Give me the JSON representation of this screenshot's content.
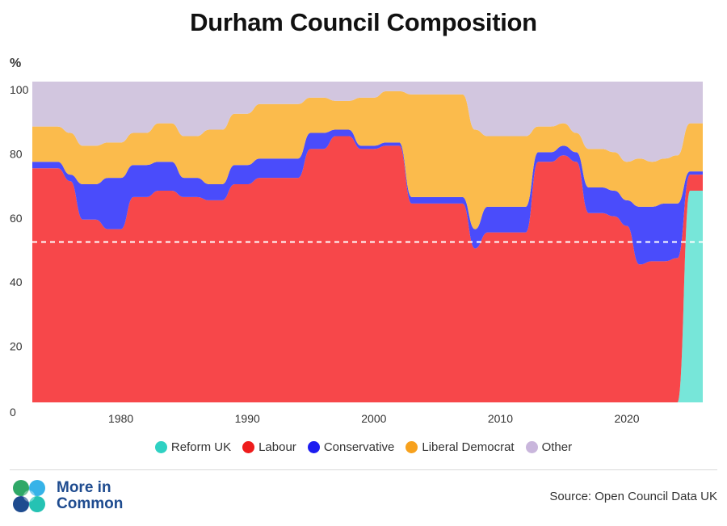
{
  "chart_data": {
    "type": "area",
    "title": "Durham Council Composition",
    "ylabel": "%",
    "xlabel": "",
    "xlim": [
      1973,
      2026
    ],
    "ylim": [
      0,
      100
    ],
    "x_ticks": [
      1980,
      1990,
      2000,
      2010,
      2020
    ],
    "y_ticks": [
      0,
      20,
      40,
      60,
      80,
      100
    ],
    "stacked": true,
    "reference_line": 50,
    "legend_position": "bottom",
    "breakpoints": [
      1973,
      1975,
      1976,
      1977,
      1978,
      1979,
      1980,
      1981,
      1982,
      1983,
      1984,
      1985,
      1986,
      1987,
      1988,
      1989,
      1990,
      1991,
      1992,
      1993,
      1994,
      1995,
      1996,
      1997,
      1998,
      1999,
      2000,
      2001,
      2002,
      2003,
      2004,
      2005,
      2006,
      2007,
      2008,
      2009,
      2010,
      2011,
      2012,
      2013,
      2014,
      2015,
      2016,
      2017,
      2018,
      2019,
      2020,
      2021,
      2022,
      2023,
      2024,
      2025,
      2026
    ],
    "series": [
      {
        "name": "Reform UK",
        "color": "#77e6d9",
        "values": [
          0,
          0,
          0,
          0,
          0,
          0,
          0,
          0,
          0,
          0,
          0,
          0,
          0,
          0,
          0,
          0,
          0,
          0,
          0,
          0,
          0,
          0,
          0,
          0,
          0,
          0,
          0,
          0,
          0,
          0,
          0,
          0,
          0,
          0,
          0,
          0,
          0,
          0,
          0,
          0,
          0,
          0,
          0,
          0,
          0,
          0,
          0,
          0,
          0,
          0,
          0,
          66,
          66
        ]
      },
      {
        "name": "Labour",
        "color": "#f7474a",
        "values": [
          73,
          73,
          69,
          57,
          57,
          54,
          54,
          64,
          64,
          66,
          66,
          64,
          64,
          63,
          63,
          68,
          68,
          70,
          70,
          70,
          70,
          79,
          79,
          83,
          83,
          79,
          79,
          80,
          80,
          62,
          62,
          62,
          62,
          62,
          48,
          53,
          53,
          53,
          53,
          75,
          75,
          77,
          75,
          59,
          59,
          58,
          55,
          43,
          44,
          44,
          45,
          5,
          5
        ]
      },
      {
        "name": "Conservative",
        "color": "#4a4cfb",
        "values": [
          2,
          2,
          2,
          11,
          11,
          16,
          16,
          10,
          10,
          9,
          9,
          6,
          6,
          5,
          5,
          6,
          6,
          6,
          6,
          6,
          6,
          5,
          5,
          2,
          2,
          1,
          1,
          1,
          1,
          2,
          2,
          2,
          2,
          2,
          6,
          8,
          8,
          8,
          8,
          3,
          3,
          3,
          3,
          8,
          8,
          8,
          8,
          18,
          17,
          18,
          17,
          1,
          1
        ]
      },
      {
        "name": "Liberal Democrat",
        "color": "#fbbb4c",
        "values": [
          11,
          11,
          13,
          12,
          12,
          11,
          11,
          10,
          10,
          12,
          12,
          13,
          13,
          17,
          17,
          16,
          16,
          17,
          17,
          17,
          17,
          11,
          11,
          9,
          9,
          15,
          15,
          16,
          16,
          32,
          32,
          32,
          32,
          32,
          31,
          22,
          22,
          22,
          22,
          8,
          8,
          7,
          6,
          12,
          12,
          12,
          12,
          15,
          14,
          14,
          15,
          15,
          15
        ]
      },
      {
        "name": "Other",
        "color": "#d2c6df",
        "values": [
          14,
          14,
          16,
          20,
          20,
          19,
          19,
          16,
          16,
          13,
          13,
          17,
          17,
          15,
          15,
          10,
          10,
          7,
          7,
          7,
          7,
          5,
          5,
          6,
          6,
          5,
          5,
          3,
          3,
          4,
          4,
          4,
          4,
          4,
          15,
          17,
          17,
          17,
          17,
          14,
          14,
          13,
          16,
          21,
          21,
          22,
          25,
          24,
          25,
          24,
          23,
          13,
          13
        ]
      }
    ]
  },
  "legend": {
    "items": [
      {
        "label": "Reform UK",
        "color": "#2fd1c3"
      },
      {
        "label": "Labour",
        "color": "#ee1c1c"
      },
      {
        "label": "Conservative",
        "color": "#1c1cf0"
      },
      {
        "label": "Liberal Democrat",
        "color": "#f7a11d"
      },
      {
        "label": "Other",
        "color": "#c9b6dc"
      }
    ]
  },
  "footer": {
    "logo_line1": "More in",
    "logo_line2": "Common",
    "source": "Source: Open Council Data UK"
  },
  "colors": {
    "logo_blue": "#1e4b8f",
    "logo_teal": "#25c2b3",
    "logo_green": "#2fa867",
    "logo_light_blue": "#36b3e8",
    "reference_line": "#ffffff"
  }
}
